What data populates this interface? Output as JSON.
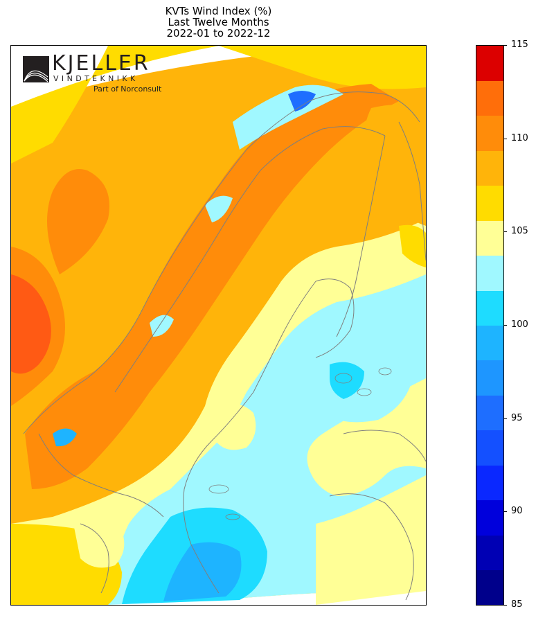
{
  "title": {
    "line1": "KVTs Wind Index (%)",
    "line2": "Last Twelve Months",
    "line3": "2022-01 to 2022-12"
  },
  "logo": {
    "name": "KJELLER",
    "subtitle": "VINDTEKNIKK",
    "tagline": "Part of Norconsult"
  },
  "colorbar": {
    "min": 85,
    "max": 115,
    "step": 1.875,
    "tick_labels": [
      "85",
      "90",
      "95",
      "100",
      "105",
      "110",
      "115"
    ],
    "tick_values": [
      85,
      90,
      95,
      100,
      105,
      110,
      115
    ],
    "levels": [
      {
        "from": 85.0,
        "to": 86.875,
        "color": "#00008b"
      },
      {
        "from": 86.875,
        "to": 88.75,
        "color": "#0000b4"
      },
      {
        "from": 88.75,
        "to": 90.625,
        "color": "#0000dc"
      },
      {
        "from": 90.625,
        "to": 92.5,
        "color": "#0a28ff"
      },
      {
        "from": 92.5,
        "to": 94.375,
        "color": "#1450ff"
      },
      {
        "from": 94.375,
        "to": 96.25,
        "color": "#1e6eff"
      },
      {
        "from": 96.25,
        "to": 98.125,
        "color": "#1e96ff"
      },
      {
        "from": 98.125,
        "to": 100.0,
        "color": "#1eb4ff"
      },
      {
        "from": 100.0,
        "to": 101.875,
        "color": "#1edcff"
      },
      {
        "from": 101.875,
        "to": 103.75,
        "color": "#a0f8ff"
      },
      {
        "from": 103.75,
        "to": 105.625,
        "color": "#ffff96"
      },
      {
        "from": 105.625,
        "to": 107.5,
        "color": "#ffdc00"
      },
      {
        "from": 107.5,
        "to": 109.375,
        "color": "#ffb40a"
      },
      {
        "from": 109.375,
        "to": 111.25,
        "color": "#ff8c0a"
      },
      {
        "from": 111.25,
        "to": 113.125,
        "color": "#ff6e0a"
      },
      {
        "from": 113.125,
        "to": 115.0,
        "color": "#dc0000"
      }
    ]
  },
  "map": {
    "region": "Scandinavia",
    "colors": {
      "orange_dark": "#ff5a14",
      "orange": "#ff8c0a",
      "amber": "#ffb40a",
      "yellow": "#ffdc00",
      "light_yellow": "#ffff96",
      "pale_cyan": "#a0f8ff",
      "cyan": "#1edcff",
      "blue": "#1eb4ff",
      "deep_blue": "#1e6eff",
      "border": "#7f7f7f"
    }
  }
}
